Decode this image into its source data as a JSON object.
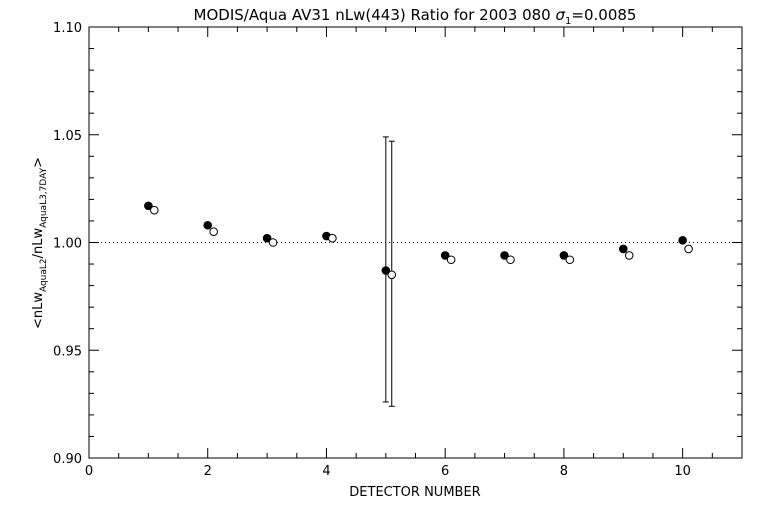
{
  "chart_data": {
    "type": "scatter",
    "title": "MODIS/Aqua AV31 nLw(443) Ratio for 2003 080 ",
    "title_sigma": "σ",
    "title_sigma_sub": "1",
    "title_sigma_value": "=0.0085",
    "xlabel": "DETECTOR NUMBER",
    "ylabel_parts": {
      "open": "<nLw",
      "sub1": "AquaL2",
      "mid": "/nLw",
      "sub2": "AquaL3,7DAY",
      "close": ">"
    },
    "xlim": [
      0,
      11
    ],
    "ylim": [
      0.9,
      1.1
    ],
    "x_ticks": [
      0,
      2,
      4,
      6,
      8,
      10
    ],
    "x_tick_labels": [
      "0",
      "2",
      "4",
      "6",
      "8",
      "10"
    ],
    "y_ticks": [
      0.9,
      0.95,
      1.0,
      1.05,
      1.1
    ],
    "y_tick_labels": [
      "0.90",
      "0.95",
      "1.00",
      "1.05",
      "1.10"
    ],
    "reference_line": 1.0,
    "grid": false,
    "series": [
      {
        "marker": "filled-circle",
        "x": [
          1,
          2,
          3,
          4,
          5,
          6,
          7,
          8,
          9,
          10
        ],
        "y": [
          1.017,
          1.008,
          1.002,
          1.003,
          0.987,
          0.994,
          0.994,
          0.994,
          0.997,
          1.001
        ],
        "error_bars": [
          {
            "x": 5,
            "low": 0.926,
            "high": 1.049
          }
        ]
      },
      {
        "marker": "open-circle",
        "x": [
          1.1,
          2.1,
          3.1,
          4.1,
          5.1,
          6.1,
          7.1,
          8.1,
          9.1,
          10.1
        ],
        "y": [
          1.015,
          1.005,
          1.0,
          1.002,
          0.985,
          0.992,
          0.992,
          0.992,
          0.994,
          0.997
        ],
        "error_bars": [
          {
            "x": 5.1,
            "low": 0.924,
            "high": 1.047
          }
        ]
      }
    ]
  }
}
